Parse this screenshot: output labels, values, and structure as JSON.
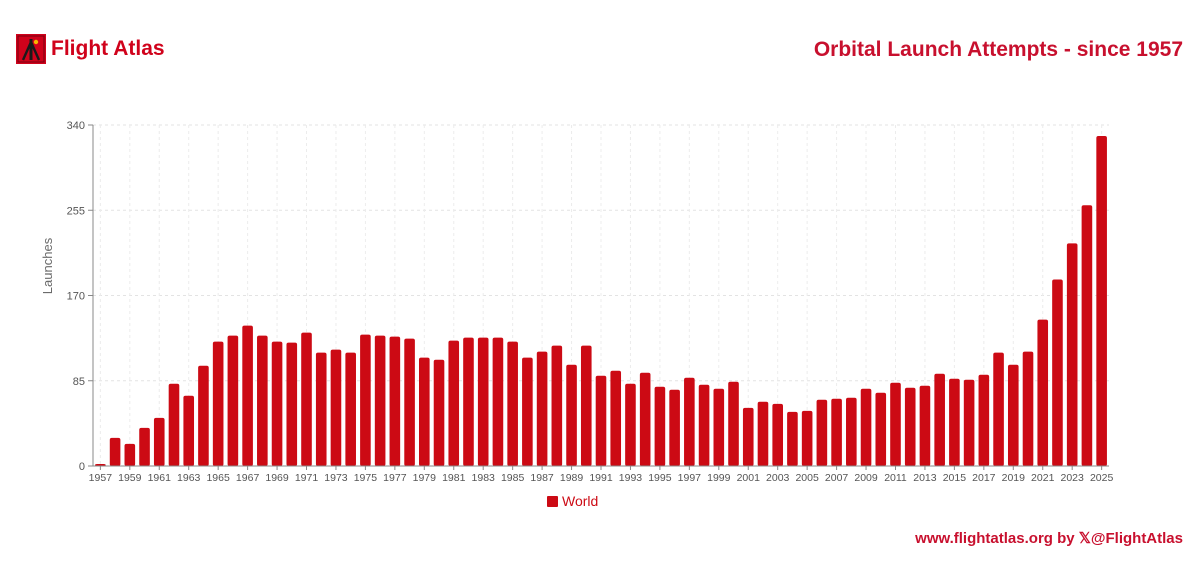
{
  "brand": {
    "name": "Flight Atlas",
    "logo": "flight-atlas-logo-icon"
  },
  "header": {
    "title": "Orbital Launch Attempts - since 1957"
  },
  "footer": {
    "credit": "www.flightatlas.org by 𝕏@FlightAtlas"
  },
  "colors": {
    "accent": "#c8102e",
    "bar": "#cc0a14",
    "logo_bg": "#d0021b"
  },
  "chart_data": {
    "type": "bar",
    "ylabel": "Launches",
    "xlabel": "",
    "ylim": [
      0,
      340
    ],
    "yticks": [
      0,
      85,
      170,
      255,
      340
    ],
    "grid": true,
    "legend_position": "bottom-center",
    "categories": [
      "1957",
      "1958",
      "1959",
      "1960",
      "1961",
      "1962",
      "1963",
      "1964",
      "1965",
      "1966",
      "1967",
      "1968",
      "1969",
      "1970",
      "1971",
      "1972",
      "1973",
      "1974",
      "1975",
      "1976",
      "1977",
      "1978",
      "1979",
      "1980",
      "1981",
      "1982",
      "1983",
      "1984",
      "1985",
      "1986",
      "1987",
      "1988",
      "1989",
      "1990",
      "1991",
      "1992",
      "1993",
      "1994",
      "1995",
      "1996",
      "1997",
      "1998",
      "1999",
      "2000",
      "2001",
      "2002",
      "2003",
      "2004",
      "2005",
      "2006",
      "2007",
      "2008",
      "2009",
      "2010",
      "2011",
      "2012",
      "2013",
      "2014",
      "2015",
      "2016",
      "2017",
      "2018",
      "2019",
      "2020",
      "2021",
      "2022",
      "2023",
      "2024",
      "2025"
    ],
    "xtick_labels": [
      "1957",
      "1959",
      "1961",
      "1963",
      "1965",
      "1967",
      "1969",
      "1971",
      "1973",
      "1975",
      "1977",
      "1979",
      "1981",
      "1983",
      "1985",
      "1987",
      "1989",
      "1991",
      "1993",
      "1995",
      "1997",
      "1999",
      "2001",
      "2003",
      "2005",
      "2007",
      "2009",
      "2011",
      "2013",
      "2015",
      "2017",
      "2019",
      "2021",
      "2023",
      "2025"
    ],
    "series": [
      {
        "name": "World",
        "color": "#cc0a14",
        "values": [
          2,
          28,
          22,
          38,
          48,
          82,
          70,
          100,
          124,
          130,
          140,
          130,
          124,
          123,
          133,
          113,
          116,
          113,
          131,
          130,
          129,
          127,
          108,
          106,
          125,
          128,
          128,
          128,
          124,
          108,
          114,
          120,
          101,
          120,
          90,
          95,
          82,
          93,
          79,
          76,
          88,
          81,
          77,
          84,
          58,
          64,
          62,
          54,
          55,
          66,
          67,
          68,
          77,
          73,
          83,
          78,
          80,
          92,
          87,
          86,
          91,
          113,
          101,
          114,
          146,
          186,
          222,
          260,
          329
        ]
      }
    ]
  }
}
